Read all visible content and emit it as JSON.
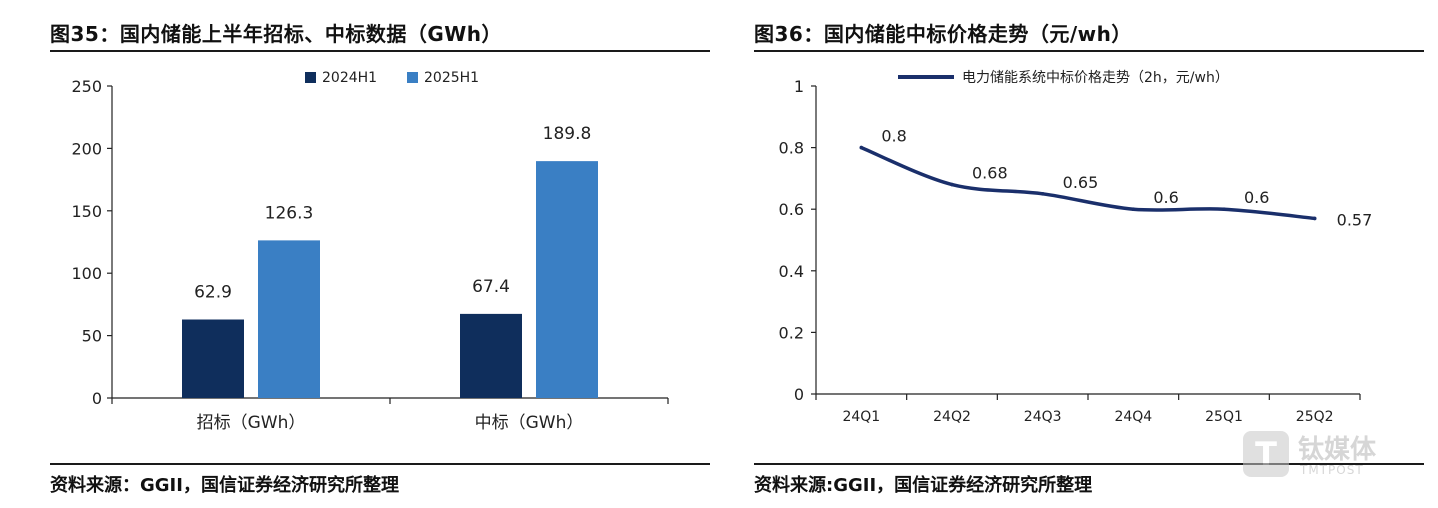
{
  "left": {
    "title": "图35：国内储能上半年招标、中标数据（GWh）",
    "source": "资料来源：GGII，国信证券经济研究所整理"
  },
  "right": {
    "title": "图36：国内储能中标价格走势（元/wh）",
    "source": "资料来源:GGII，国信证券经济研究所整理"
  },
  "watermark": {
    "cn": "钛媒体",
    "en": "TMTPOST",
    "glyph": "T"
  },
  "chart_data": [
    {
      "type": "bar",
      "categories": [
        "招标（GWh）",
        "中标（GWh）"
      ],
      "series": [
        {
          "name": "2024H1",
          "values": [
            62.9,
            67.4
          ],
          "labels": [
            "62.9",
            "67.4"
          ],
          "color": "#0f2e5c"
        },
        {
          "name": "2025H1",
          "values": [
            126.3,
            189.8
          ],
          "labels": [
            "126.3",
            "189.8"
          ],
          "color": "#3a7fc4"
        }
      ],
      "ylim": [
        0,
        250
      ],
      "yticks": [
        0,
        50,
        100,
        150,
        200,
        250
      ],
      "legend": "top-center",
      "grid": false
    },
    {
      "type": "line",
      "categories": [
        "24Q1",
        "24Q2",
        "24Q3",
        "24Q4",
        "25Q1",
        "25Q2"
      ],
      "series": [
        {
          "name": "电力储能系统中标价格走势（2h，元/wh）",
          "values": [
            0.8,
            0.68,
            0.65,
            0.6,
            0.6,
            0.57
          ],
          "labels": [
            "0.8",
            "0.68",
            "0.65",
            "0.6",
            "0.6",
            "0.57"
          ],
          "color": "#1a2f6b"
        }
      ],
      "ylim": [
        0,
        1
      ],
      "yticks": [
        "0",
        "0.2",
        "0.4",
        "0.6",
        "0.8",
        "1"
      ],
      "legend": "top-center",
      "grid": false
    }
  ]
}
